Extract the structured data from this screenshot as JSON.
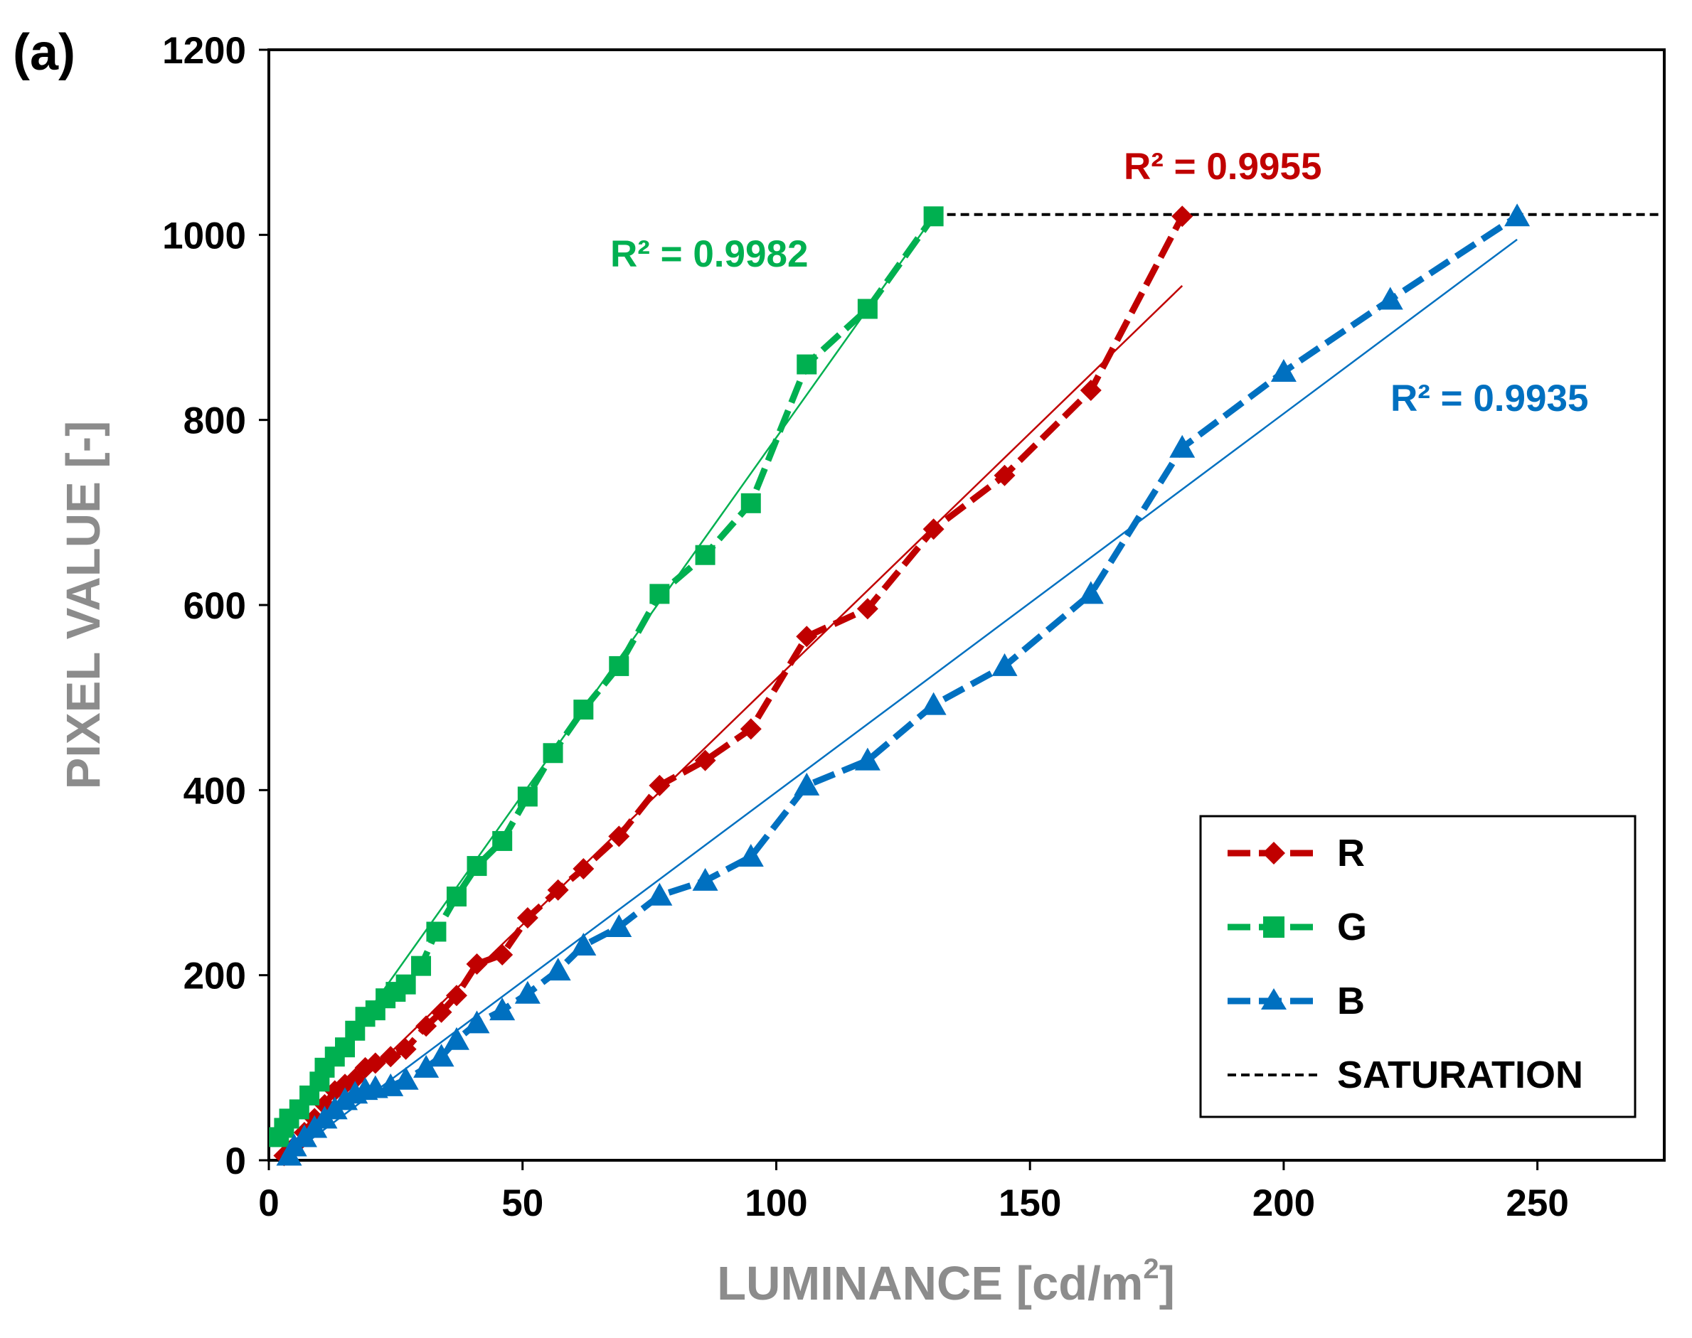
{
  "chart_data": {
    "type": "scatter",
    "panel_label": "(a)",
    "xlabel": "LUMINANCE [cd/m",
    "xlabel_sup": "2",
    "xlabel_tail": "]",
    "ylabel": "PIXEL VALUE [-]",
    "xlim": [
      0,
      275
    ],
    "ylim": [
      0,
      1200
    ],
    "xticks": [
      0,
      50,
      100,
      150,
      200,
      250
    ],
    "yticks": [
      0,
      200,
      400,
      600,
      800,
      1000,
      1200
    ],
    "xtick_labels": [
      "0",
      "50",
      "100",
      "150",
      "200",
      "250"
    ],
    "ytick_labels": [
      "0",
      "200",
      "400",
      "600",
      "800",
      "1000",
      "1200"
    ],
    "grid": false,
    "legend_position": "bottom-right",
    "colors": {
      "R": "#c00000",
      "G": "#00b050",
      "B": "#0070c0",
      "saturation": "#000000",
      "axis_title": "#8c8c8c"
    },
    "series": [
      {
        "name": "R",
        "marker": "diamond",
        "color": "#c00000",
        "r2_label": "R² = 0.9955",
        "fit": {
          "x": [
            3,
            180
          ],
          "y": [
            5,
            945
          ]
        },
        "points": [
          [
            3,
            5
          ],
          [
            5,
            15
          ],
          [
            7,
            30
          ],
          [
            9,
            45
          ],
          [
            11,
            60
          ],
          [
            13,
            75
          ],
          [
            15,
            82
          ],
          [
            17,
            88
          ],
          [
            19,
            100
          ],
          [
            21,
            105
          ],
          [
            24,
            112
          ],
          [
            27,
            120
          ],
          [
            31,
            145
          ],
          [
            34,
            160
          ],
          [
            37,
            178
          ],
          [
            41,
            212
          ],
          [
            46,
            222
          ],
          [
            51,
            262
          ],
          [
            57,
            292
          ],
          [
            62,
            315
          ],
          [
            69,
            350
          ],
          [
            77,
            405
          ],
          [
            86,
            432
          ],
          [
            95,
            466
          ],
          [
            106,
            566
          ],
          [
            118,
            596
          ],
          [
            131,
            682
          ],
          [
            145,
            740
          ],
          [
            162,
            832
          ],
          [
            180,
            1020
          ]
        ]
      },
      {
        "name": "G",
        "marker": "square",
        "color": "#00b050",
        "r2_label": "R² = 0.9982",
        "fit": {
          "x": [
            2,
            131
          ],
          "y": [
            25,
            1020
          ]
        },
        "points": [
          [
            2,
            25
          ],
          [
            3,
            35
          ],
          [
            4,
            45
          ],
          [
            6,
            55
          ],
          [
            8,
            70
          ],
          [
            10,
            85
          ],
          [
            11,
            100
          ],
          [
            13,
            112
          ],
          [
            15,
            122
          ],
          [
            17,
            140
          ],
          [
            19,
            155
          ],
          [
            21,
            162
          ],
          [
            23,
            175
          ],
          [
            25,
            182
          ],
          [
            27,
            190
          ],
          [
            30,
            210
          ],
          [
            33,
            247
          ],
          [
            37,
            285
          ],
          [
            41,
            318
          ],
          [
            46,
            345
          ],
          [
            51,
            393
          ],
          [
            56,
            440
          ],
          [
            62,
            487
          ],
          [
            69,
            534
          ],
          [
            77,
            612
          ],
          [
            86,
            654
          ],
          [
            95,
            710
          ],
          [
            106,
            860
          ],
          [
            118,
            920
          ],
          [
            131,
            1020
          ]
        ]
      },
      {
        "name": "B",
        "marker": "triangle",
        "color": "#0070c0",
        "r2_label": "R² = 0.9935",
        "fit": {
          "x": [
            4,
            246
          ],
          "y": [
            5,
            995
          ]
        },
        "points": [
          [
            4,
            5
          ],
          [
            5,
            15
          ],
          [
            7,
            25
          ],
          [
            9,
            35
          ],
          [
            11,
            45
          ],
          [
            13,
            55
          ],
          [
            15,
            65
          ],
          [
            17,
            72
          ],
          [
            19,
            76
          ],
          [
            21,
            78
          ],
          [
            24,
            80
          ],
          [
            27,
            87
          ],
          [
            31,
            100
          ],
          [
            34,
            112
          ],
          [
            37,
            130
          ],
          [
            41,
            148
          ],
          [
            46,
            162
          ],
          [
            51,
            180
          ],
          [
            57,
            205
          ],
          [
            62,
            232
          ],
          [
            69,
            252
          ],
          [
            77,
            286
          ],
          [
            86,
            302
          ],
          [
            95,
            328
          ],
          [
            106,
            405
          ],
          [
            118,
            432
          ],
          [
            131,
            492
          ],
          [
            145,
            534
          ],
          [
            162,
            612
          ],
          [
            180,
            770
          ],
          [
            200,
            852
          ],
          [
            221,
            930
          ],
          [
            246,
            1020
          ]
        ]
      },
      {
        "name": "SATURATION",
        "marker": "none",
        "color": "#000000",
        "line_style": "dashed",
        "x": [
          131,
          275
        ],
        "y": [
          1022,
          1022
        ]
      }
    ],
    "legend": [
      "R",
      "G",
      "B",
      "SATURATION"
    ]
  }
}
